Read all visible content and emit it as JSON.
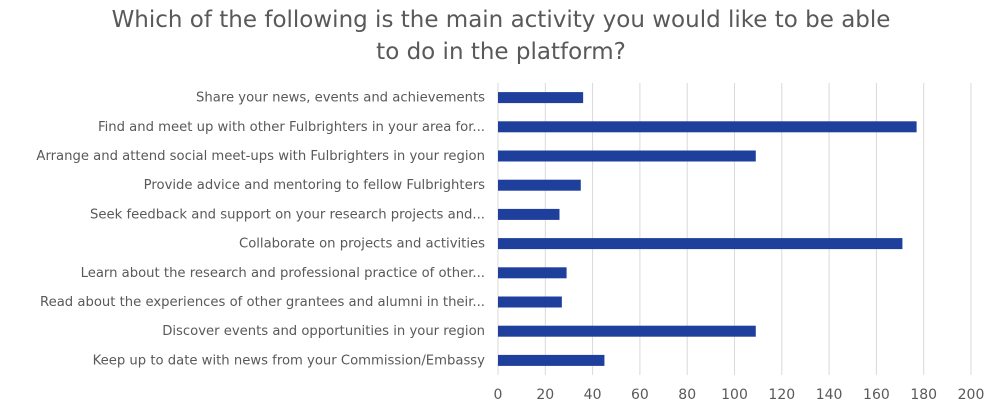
{
  "chart_data": {
    "type": "bar",
    "orientation": "horizontal",
    "title_lines": [
      "Which of the following is the main activity you would like to be able",
      "to do in the platform?"
    ],
    "categories": [
      "Share your news, events and achievements",
      "Find and meet up with other Fulbrighters in your area for...",
      "Arrange and attend social meet-ups with Fulbrighters in your region",
      "Provide advice and mentoring to fellow Fulbrighters",
      "Seek feedback and support on your research projects and...",
      "Collaborate on projects and activities",
      "Learn about the research and professional practice of other...",
      "Read about the experiences of other grantees and alumni in their...",
      "Discover events and opportunities in your region",
      "Keep up to date with news from your Commission/Embassy"
    ],
    "values": [
      36,
      177,
      109,
      35,
      26,
      171,
      29,
      27,
      109,
      45
    ],
    "xlim": [
      0,
      200
    ],
    "x_ticks": [
      "0",
      "20",
      "40",
      "60",
      "80",
      "100",
      "120",
      "140",
      "160",
      "180",
      "200"
    ],
    "grid": true,
    "legend": "none",
    "colors": {
      "bar": "#1f3f9d",
      "grid": "#d9d9d9",
      "axis_text": "#595959",
      "title": "#595959"
    }
  }
}
